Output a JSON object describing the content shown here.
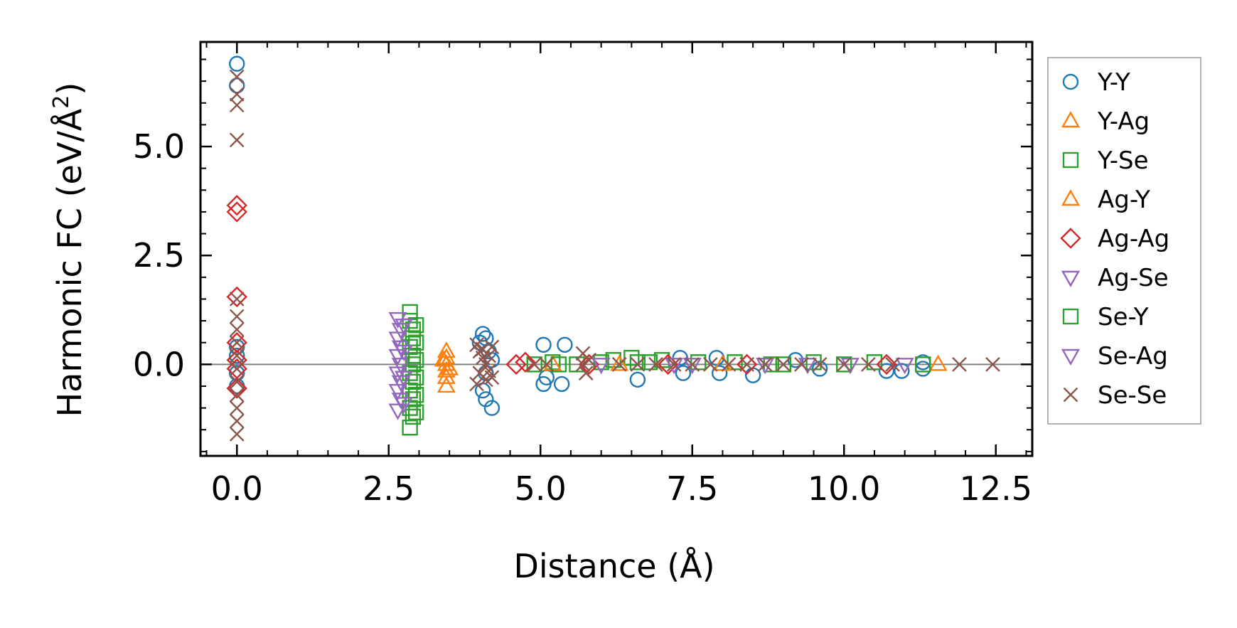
{
  "chart_data": {
    "type": "scatter",
    "title": "",
    "xlabel": "Distance (Å)",
    "ylabel": "Harmonic FC (eV/Å",
    "ylabel_superscript": "2",
    "ylabel_close": ")",
    "xlim": [
      -0.6,
      13.1
    ],
    "ylim": [
      -2.1,
      7.4
    ],
    "xticks": [
      0.0,
      2.5,
      5.0,
      7.5,
      10.0,
      12.5
    ],
    "xtick_labels": [
      "0.0",
      "2.5",
      "5.0",
      "7.5",
      "10.0",
      "12.5"
    ],
    "yticks": [
      0.0,
      2.5,
      5.0
    ],
    "ytick_labels": [
      "0.0",
      "2.5",
      "5.0"
    ],
    "hline": 0,
    "legend_position": "outside-right",
    "series": [
      {
        "name": "Y-Y",
        "marker": "circle",
        "color": "#1f77b4",
        "points": [
          [
            0,
            6.9
          ],
          [
            0,
            6.4
          ],
          [
            0,
            0.4
          ],
          [
            0,
            0.2
          ],
          [
            0,
            -0.2
          ],
          [
            0,
            -0.5
          ],
          [
            4.05,
            0.7
          ],
          [
            4.1,
            0.6
          ],
          [
            4.0,
            0.5
          ],
          [
            4.15,
            0.3
          ],
          [
            4.2,
            0.1
          ],
          [
            4.1,
            -0.2
          ],
          [
            4.05,
            -0.6
          ],
          [
            4.1,
            -0.8
          ],
          [
            4.2,
            -1.0
          ],
          [
            5.05,
            0.45
          ],
          [
            5.4,
            0.45
          ],
          [
            5.1,
            -0.3
          ],
          [
            5.05,
            -0.45
          ],
          [
            5.35,
            -0.45
          ],
          [
            6.6,
            -0.35
          ],
          [
            7.3,
            0.15
          ],
          [
            7.35,
            -0.2
          ],
          [
            7.9,
            0.15
          ],
          [
            7.95,
            -0.2
          ],
          [
            8.5,
            -0.25
          ],
          [
            9.2,
            0.1
          ],
          [
            9.6,
            -0.1
          ],
          [
            10.7,
            -0.15
          ],
          [
            10.95,
            -0.15
          ],
          [
            11.3,
            -0.1
          ],
          [
            11.3,
            0.05
          ]
        ]
      },
      {
        "name": "Y-Ag",
        "marker": "triangle-up",
        "color": "#ff7f0e",
        "points": [
          [
            3.45,
            0.3
          ],
          [
            3.45,
            0.15
          ],
          [
            3.45,
            0.0
          ],
          [
            3.45,
            -0.15
          ],
          [
            3.45,
            -0.3
          ],
          [
            3.45,
            -0.5
          ],
          [
            11.55,
            0.0
          ]
        ]
      },
      {
        "name": "Y-Se",
        "marker": "square",
        "color": "#2ca02c",
        "points": [
          [
            2.85,
            1.2
          ],
          [
            2.85,
            1.0
          ],
          [
            2.9,
            0.8
          ],
          [
            2.9,
            0.6
          ],
          [
            2.85,
            0.4
          ],
          [
            2.9,
            0.2
          ],
          [
            2.9,
            0.0
          ],
          [
            2.85,
            -0.2
          ],
          [
            2.9,
            -0.4
          ],
          [
            2.85,
            -0.6
          ],
          [
            2.9,
            -0.8
          ],
          [
            2.85,
            -1.0
          ],
          [
            2.9,
            -1.2
          ],
          [
            2.85,
            -1.45
          ],
          [
            4.9,
            0.0
          ],
          [
            5.2,
            0.05
          ],
          [
            5.6,
            0.0
          ],
          [
            6.0,
            0.05
          ],
          [
            6.2,
            0.1
          ],
          [
            6.5,
            0.15
          ],
          [
            6.8,
            0.05
          ],
          [
            7.0,
            0.1
          ],
          [
            7.6,
            0.05
          ],
          [
            8.2,
            0.05
          ],
          [
            8.8,
            0.0
          ],
          [
            9.5,
            0.05
          ],
          [
            10.0,
            0.0
          ],
          [
            10.5,
            0.05
          ],
          [
            11.3,
            0.0
          ]
        ]
      },
      {
        "name": "Ag-Y",
        "marker": "triangle-up",
        "color": "#ff7f0e",
        "points": [
          [
            3.4,
            0.1
          ],
          [
            3.5,
            -0.1
          ],
          [
            5.2,
            0.0
          ],
          [
            6.3,
            0.0
          ],
          [
            8.0,
            0.0
          ]
        ]
      },
      {
        "name": "Ag-Ag",
        "marker": "diamond",
        "color": "#d62728",
        "points": [
          [
            0,
            3.65
          ],
          [
            0,
            3.5
          ],
          [
            0,
            1.55
          ],
          [
            0,
            0.5
          ],
          [
            0,
            0.1
          ],
          [
            0,
            -0.1
          ],
          [
            0,
            -0.55
          ],
          [
            4.6,
            0.0
          ],
          [
            4.75,
            0.05
          ],
          [
            5.8,
            0.0
          ],
          [
            7.1,
            0.0
          ],
          [
            8.4,
            0.0
          ],
          [
            10.7,
            0.0
          ]
        ]
      },
      {
        "name": "Ag-Se",
        "marker": "triangle-down",
        "color": "#9467bd",
        "points": [
          [
            2.65,
            1.05
          ],
          [
            2.7,
            0.8
          ],
          [
            2.65,
            0.6
          ],
          [
            2.7,
            0.4
          ],
          [
            2.65,
            0.2
          ],
          [
            2.7,
            0.0
          ],
          [
            2.65,
            -0.2
          ],
          [
            2.7,
            -0.4
          ],
          [
            2.65,
            -0.6
          ],
          [
            2.7,
            -0.8
          ],
          [
            2.65,
            -1.05
          ],
          [
            6.0,
            0.0
          ],
          [
            7.2,
            0.0
          ],
          [
            8.7,
            0.0
          ],
          [
            10.1,
            0.0
          ],
          [
            11.0,
            0.0
          ]
        ]
      },
      {
        "name": "Se-Y",
        "marker": "square",
        "color": "#2ca02c",
        "points": [
          [
            2.95,
            0.9
          ],
          [
            2.95,
            0.5
          ],
          [
            2.95,
            0.1
          ],
          [
            2.95,
            -0.3
          ],
          [
            2.95,
            -0.7
          ],
          [
            2.95,
            -1.1
          ],
          [
            5.3,
            0.0
          ],
          [
            6.6,
            0.05
          ],
          [
            9.0,
            0.0
          ]
        ]
      },
      {
        "name": "Se-Ag",
        "marker": "triangle-down",
        "color": "#9467bd",
        "points": [
          [
            2.75,
            0.9
          ],
          [
            2.75,
            0.3
          ],
          [
            2.75,
            -0.3
          ],
          [
            2.75,
            -0.9
          ],
          [
            7.5,
            0.0
          ],
          [
            9.4,
            0.0
          ]
        ]
      },
      {
        "name": "Se-Se",
        "marker": "x",
        "color": "#8c564b",
        "points": [
          [
            0,
            6.6
          ],
          [
            0,
            6.2
          ],
          [
            0,
            5.95
          ],
          [
            0,
            5.15
          ],
          [
            0,
            1.5
          ],
          [
            0,
            1.1
          ],
          [
            0,
            0.8
          ],
          [
            0,
            0.5
          ],
          [
            0,
            0.2
          ],
          [
            0,
            -0.1
          ],
          [
            0,
            -0.4
          ],
          [
            0,
            -0.7
          ],
          [
            0,
            -1.0
          ],
          [
            0,
            -1.3
          ],
          [
            0,
            -1.6
          ],
          [
            3.95,
            0.45
          ],
          [
            4.0,
            0.3
          ],
          [
            4.05,
            0.15
          ],
          [
            4.1,
            0.0
          ],
          [
            4.15,
            -0.15
          ],
          [
            4.2,
            -0.3
          ],
          [
            3.95,
            -0.45
          ],
          [
            4.05,
            0.35
          ],
          [
            4.15,
            0.2
          ],
          [
            4.0,
            -0.2
          ],
          [
            4.1,
            -0.35
          ],
          [
            4.2,
            0.4
          ],
          [
            4.9,
            0.0
          ],
          [
            5.1,
            0.0
          ],
          [
            5.7,
            0.25
          ],
          [
            5.7,
            0.0
          ],
          [
            5.75,
            -0.2
          ],
          [
            5.8,
            0.1
          ],
          [
            6.3,
            0.0
          ],
          [
            6.6,
            0.0
          ],
          [
            6.9,
            0.0
          ],
          [
            7.2,
            0.0
          ],
          [
            7.5,
            0.0
          ],
          [
            7.8,
            0.0
          ],
          [
            8.1,
            0.0
          ],
          [
            8.4,
            0.0
          ],
          [
            8.7,
            0.0
          ],
          [
            9.0,
            0.0
          ],
          [
            9.3,
            0.0
          ],
          [
            9.6,
            0.0
          ],
          [
            10.0,
            0.0
          ],
          [
            10.4,
            0.0
          ],
          [
            10.8,
            0.0
          ],
          [
            11.9,
            0.0
          ],
          [
            12.45,
            0.0
          ]
        ]
      }
    ]
  }
}
